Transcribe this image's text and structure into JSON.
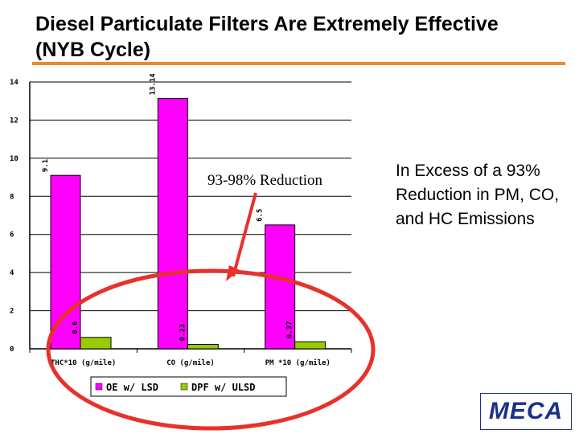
{
  "slide": {
    "title": "Diesel Particulate Filters Are Extremely Effective (NYB Cycle)",
    "side_note": "In Excess of a 93% Reduction in PM, CO, and HC Emissions",
    "callout": "93-98% Reduction",
    "logo_text": "MECA",
    "accent_color": "#e98a2c",
    "highlight_color": "#e8312b",
    "arrow_color": "#e8312b",
    "logo_color": "#1b2f8a"
  },
  "chart_data": {
    "type": "bar",
    "categories": [
      "THC*10 (g/mile)",
      "CO (g/mile)",
      "PM *10 (g/mile)"
    ],
    "series": [
      {
        "name": "OE w/ LSD",
        "values": [
          9.1,
          13.14,
          6.5
        ],
        "color": "#ff00ff"
      },
      {
        "name": "DPF w/ ULSD",
        "values": [
          0.6,
          0.23,
          0.37
        ],
        "color": "#99cc00"
      }
    ],
    "value_labels": [
      [
        "9.1",
        "13.14",
        "6.5"
      ],
      [
        "0.6",
        "0.23",
        "0.37"
      ]
    ],
    "ylim": [
      0,
      14
    ],
    "yticks": [
      0,
      2,
      4,
      6,
      8,
      10,
      12,
      14
    ],
    "grid": true,
    "legend": "bottom",
    "title": "",
    "xlabel": "",
    "ylabel": ""
  }
}
